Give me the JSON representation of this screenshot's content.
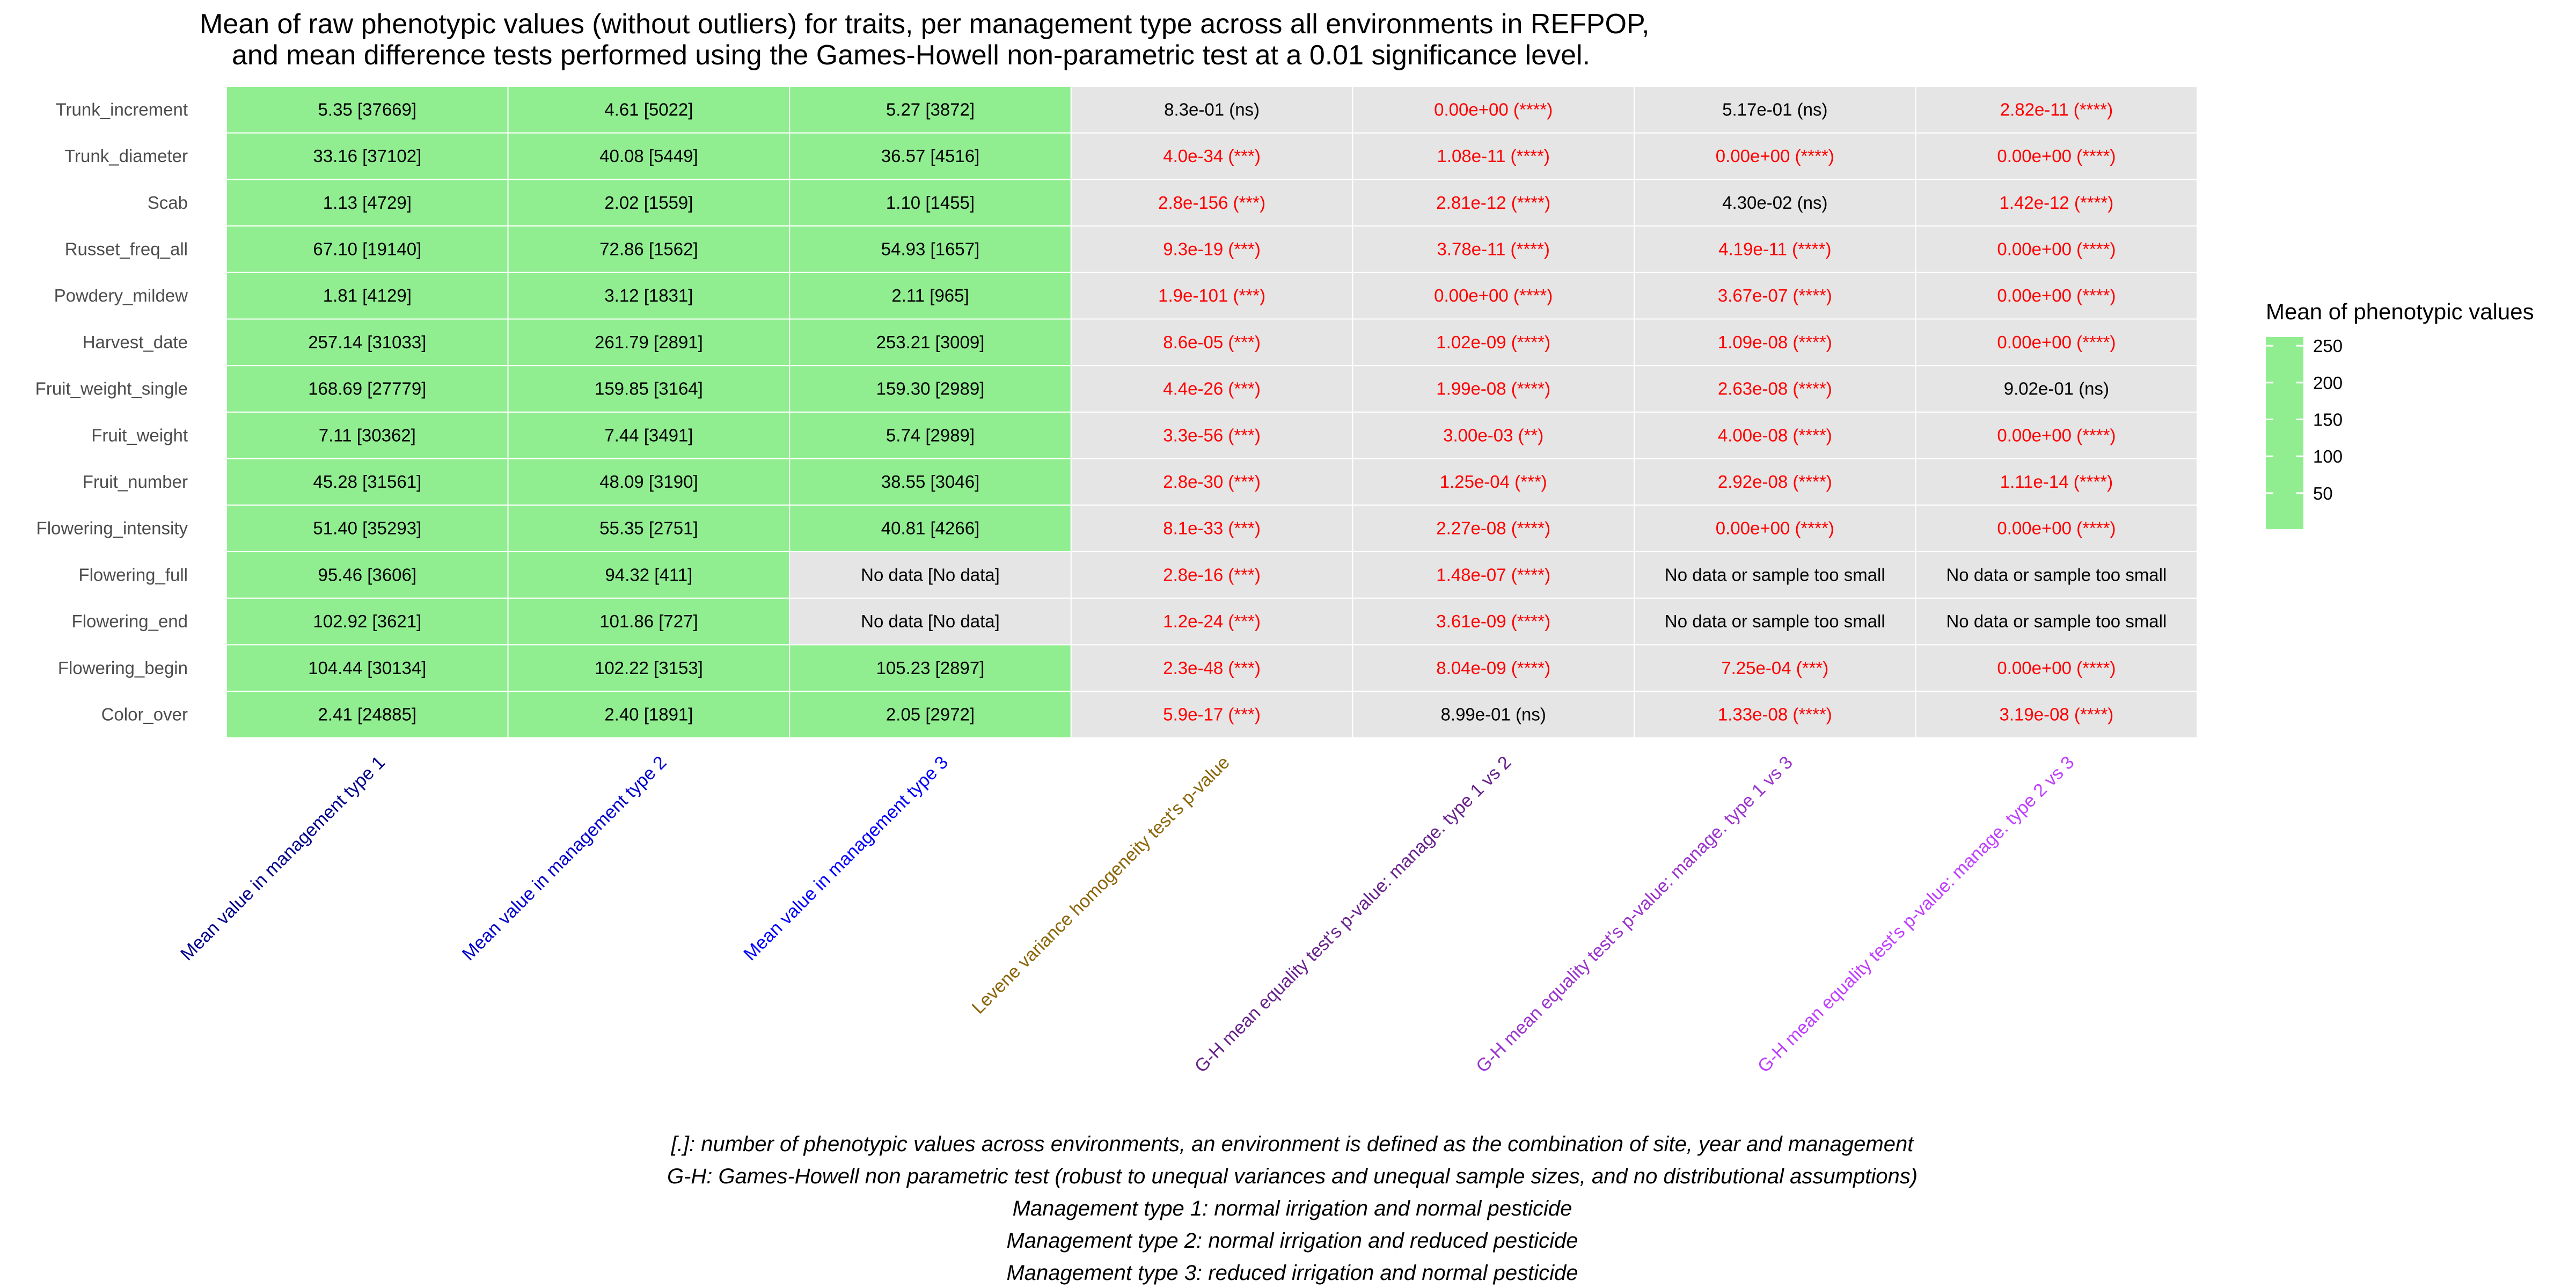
{
  "chart_data": {
    "type": "heatmap",
    "title_lines": [
      "Mean of raw phenotypic values (without outliers) for traits, per management type across all environments in REFPOP,",
      "and mean difference tests performed using the Games-Howell non-parametric test at a 0.01 significance level."
    ],
    "rows": [
      "Trunk_increment",
      "Trunk_diameter",
      "Scab",
      "Russet_freq_all",
      "Powdery_mildew",
      "Harvest_date",
      "Fruit_weight_single",
      "Fruit_weight",
      "Fruit_number",
      "Flowering_intensity",
      "Flowering_full",
      "Flowering_end",
      "Flowering_begin",
      "Color_over"
    ],
    "columns": [
      {
        "label": "Mean value in management type 1",
        "color": "#00008b"
      },
      {
        "label": "Mean value in management type 2",
        "color": "#0000cd"
      },
      {
        "label": "Mean value in management type 3",
        "color": "#0000ff"
      },
      {
        "label": "Levene variance homogeneity test's p-value",
        "color": "#8b6508"
      },
      {
        "label": "G-H mean equality test's p-value: manage. type 1 vs 2",
        "color": "#68228b"
      },
      {
        "label": "G-H mean equality test's p-value: manage. type 1 vs 3",
        "color": "#9a32cd"
      },
      {
        "label": "G-H mean equality test's p-value: manage. type 2 vs 3",
        "color": "#bf3eff"
      }
    ],
    "cells": [
      [
        "5.35 [37669]",
        "4.61 [5022]",
        "5.27 [3872]",
        "8.3e-01 (ns)",
        "0.00e+00 (****)",
        "5.17e-01 (ns)",
        "2.82e-11 (****)"
      ],
      [
        "33.16 [37102]",
        "40.08 [5449]",
        "36.57 [4516]",
        "4.0e-34 (***)",
        "1.08e-11 (****)",
        "0.00e+00 (****)",
        "0.00e+00 (****)"
      ],
      [
        "1.13 [4729]",
        "2.02 [1559]",
        "1.10 [1455]",
        "2.8e-156 (***)",
        "2.81e-12 (****)",
        "4.30e-02 (ns)",
        "1.42e-12 (****)"
      ],
      [
        "67.10 [19140]",
        "72.86 [1562]",
        "54.93 [1657]",
        "9.3e-19 (***)",
        "3.78e-11 (****)",
        "4.19e-11 (****)",
        "0.00e+00 (****)"
      ],
      [
        "1.81 [4129]",
        "3.12 [1831]",
        "2.11 [965]",
        "1.9e-101 (***)",
        "0.00e+00 (****)",
        "3.67e-07 (****)",
        "0.00e+00 (****)"
      ],
      [
        "257.14 [31033]",
        "261.79 [2891]",
        "253.21 [3009]",
        "8.6e-05 (***)",
        "1.02e-09 (****)",
        "1.09e-08 (****)",
        "0.00e+00 (****)"
      ],
      [
        "168.69 [27779]",
        "159.85 [3164]",
        "159.30 [2989]",
        "4.4e-26 (***)",
        "1.99e-08 (****)",
        "2.63e-08 (****)",
        "9.02e-01 (ns)"
      ],
      [
        "7.11 [30362]",
        "7.44 [3491]",
        "5.74 [2989]",
        "3.3e-56 (***)",
        "3.00e-03 (**)",
        "4.00e-08 (****)",
        "0.00e+00 (****)"
      ],
      [
        "45.28 [31561]",
        "48.09 [3190]",
        "38.55 [3046]",
        "2.8e-30 (***)",
        "1.25e-04 (***)",
        "2.92e-08 (****)",
        "1.11e-14 (****)"
      ],
      [
        "51.40 [35293]",
        "55.35 [2751]",
        "40.81 [4266]",
        "8.1e-33 (***)",
        "2.27e-08 (****)",
        "0.00e+00 (****)",
        "0.00e+00 (****)"
      ],
      [
        "95.46 [3606]",
        "94.32 [411]",
        "No data [No data]",
        "2.8e-16 (***)",
        "1.48e-07 (****)",
        "No data or sample too small",
        "No data or sample too small"
      ],
      [
        "102.92 [3621]",
        "101.86 [727]",
        "No data [No data]",
        "1.2e-24 (***)",
        "3.61e-09 (****)",
        "No data or sample too small",
        "No data or sample too small"
      ],
      [
        "104.44 [30134]",
        "102.22 [3153]",
        "105.23 [2897]",
        "2.3e-48 (***)",
        "8.04e-09 (****)",
        "7.25e-04 (***)",
        "0.00e+00 (****)"
      ],
      [
        "2.41 [24885]",
        "2.40 [1891]",
        "2.05 [2972]",
        "5.9e-17 (***)",
        "8.99e-01 (ns)",
        "1.33e-08 (****)",
        "3.19e-08 (****)"
      ]
    ],
    "colors": {
      "has_value": "#90ee90",
      "no_data": "#e5e5e5",
      "test": "#e5e5e5",
      "significant_text": "#ff0000",
      "ns_text": "#000000",
      "grid": "#ffffff"
    },
    "legend": {
      "title": "Mean of phenotypic values",
      "ticks": [
        250,
        200,
        150,
        100,
        50
      ],
      "range": [
        1.1,
        261.79
      ],
      "color": "#90ee90",
      "placement": "right"
    },
    "caption_lines": [
      "[.]: number of phenotypic values across environments, an environment is defined as the combination of site, year and management",
      "G-H: Games-Howell non parametric test (robust to unequal variances and unequal sample sizes, and no distributional assumptions)",
      "Management type 1: normal irrigation and normal pesticide",
      "Management type 2: normal irrigation and reduced pesticide",
      "Management type 3: reduced irrigation and normal pesticide"
    ]
  }
}
